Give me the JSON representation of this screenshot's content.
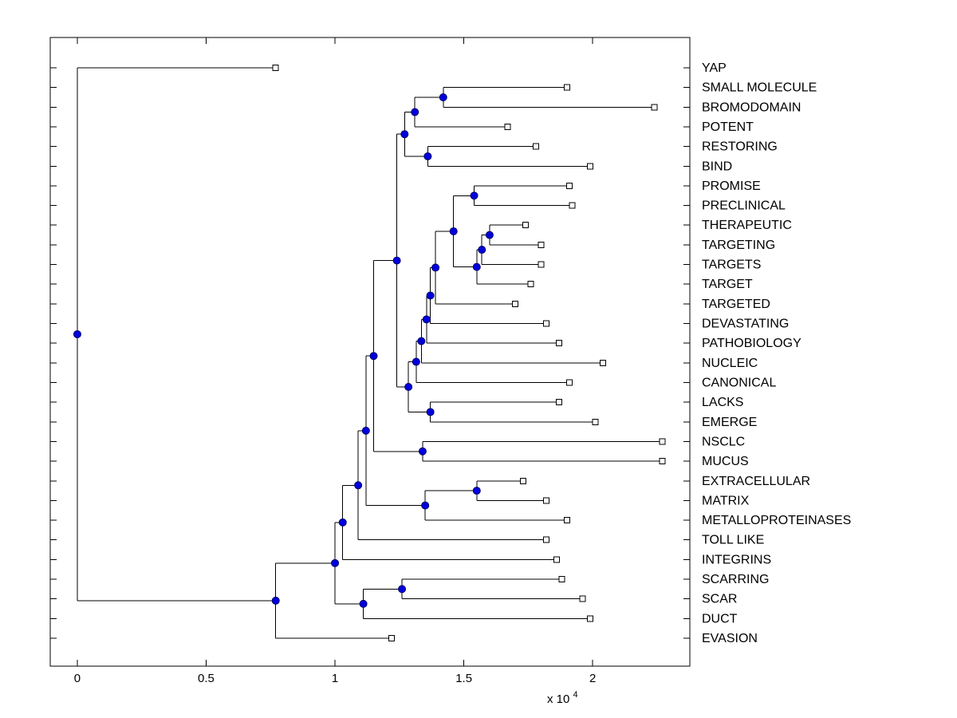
{
  "figure": {
    "background": "#ffffff"
  },
  "chart_data": {
    "type": "dendrogram",
    "orientation": "left-to-right",
    "title": "",
    "x_axis": {
      "ticks": [
        0,
        0.5,
        1,
        1.5,
        2
      ],
      "tick_labels": [
        "0",
        "0.5",
        "1",
        "1.5",
        "2"
      ],
      "xlim": [
        -0.105,
        2.377
      ],
      "multiplier_prefix": "x 10",
      "multiplier_exponent": "4"
    },
    "leaves": [
      {
        "label": "YAP",
        "height": 0.77
      },
      {
        "label": "SMALL MOLECULE",
        "height": 1.9
      },
      {
        "label": "BROMODOMAIN",
        "height": 2.24
      },
      {
        "label": "POTENT",
        "height": 1.67
      },
      {
        "label": "RESTORING",
        "height": 1.78
      },
      {
        "label": "BIND",
        "height": 1.99
      },
      {
        "label": "PROMISE",
        "height": 1.91
      },
      {
        "label": "PRECLINICAL",
        "height": 1.92
      },
      {
        "label": "THERAPEUTIC",
        "height": 1.74
      },
      {
        "label": "TARGETING",
        "height": 1.8
      },
      {
        "label": "TARGETS",
        "height": 1.8
      },
      {
        "label": "TARGET",
        "height": 1.76
      },
      {
        "label": "TARGETED",
        "height": 1.7
      },
      {
        "label": "DEVASTATING",
        "height": 1.82
      },
      {
        "label": "PATHOBIOLOGY",
        "height": 1.87
      },
      {
        "label": "NUCLEIC",
        "height": 2.04
      },
      {
        "label": "CANONICAL",
        "height": 1.91
      },
      {
        "label": "LACKS",
        "height": 1.87
      },
      {
        "label": "EMERGE",
        "height": 2.01
      },
      {
        "label": "NSCLC",
        "height": 2.27
      },
      {
        "label": "MUCUS",
        "height": 2.27
      },
      {
        "label": "EXTRACELLULAR",
        "height": 1.73
      },
      {
        "label": "MATRIX",
        "height": 1.82
      },
      {
        "label": "METALLOPROTEINASES",
        "height": 1.9
      },
      {
        "label": "TOLL LIKE",
        "height": 1.82
      },
      {
        "label": "INTEGRINS",
        "height": 1.86
      },
      {
        "label": "SCARRING",
        "height": 1.88
      },
      {
        "label": "SCAR",
        "height": 1.96
      },
      {
        "label": "DUCT",
        "height": 1.99
      },
      {
        "label": "EVASION",
        "height": 1.22
      }
    ],
    "internal_nodes": [
      {
        "id": "n1",
        "children": [
          "leaf1",
          "leaf2"
        ],
        "height": 1.42
      },
      {
        "id": "n2",
        "children": [
          "n1",
          "leaf3"
        ],
        "height": 1.31
      },
      {
        "id": "n3",
        "children": [
          "leaf4",
          "leaf5"
        ],
        "height": 1.36
      },
      {
        "id": "n4",
        "children": [
          "n2",
          "n3"
        ],
        "height": 1.27
      },
      {
        "id": "n5",
        "children": [
          "leaf6",
          "leaf7"
        ],
        "height": 1.54
      },
      {
        "id": "n6",
        "children": [
          "leaf8",
          "leaf9"
        ],
        "height": 1.6
      },
      {
        "id": "n7",
        "children": [
          "n6",
          "leaf10"
        ],
        "height": 1.57
      },
      {
        "id": "n8",
        "children": [
          "n7",
          "leaf11"
        ],
        "height": 1.55
      },
      {
        "id": "n9",
        "children": [
          "n5",
          "n8"
        ],
        "height": 1.46
      },
      {
        "id": "n10",
        "children": [
          "n9",
          "leaf12"
        ],
        "height": 1.39
      },
      {
        "id": "n11",
        "children": [
          "n10",
          "leaf13"
        ],
        "height": 1.37
      },
      {
        "id": "n12",
        "children": [
          "n11",
          "leaf14"
        ],
        "height": 1.355
      },
      {
        "id": "n13",
        "children": [
          "n12",
          "leaf15"
        ],
        "height": 1.335
      },
      {
        "id": "n14",
        "children": [
          "n13",
          "leaf16"
        ],
        "height": 1.315
      },
      {
        "id": "n15",
        "children": [
          "leaf17",
          "leaf18"
        ],
        "height": 1.37
      },
      {
        "id": "n16",
        "children": [
          "n14",
          "n15"
        ],
        "height": 1.285
      },
      {
        "id": "n17",
        "children": [
          "n4",
          "n16"
        ],
        "height": 1.24
      },
      {
        "id": "n18",
        "children": [
          "leaf19",
          "leaf20"
        ],
        "height": 1.34
      },
      {
        "id": "n19",
        "children": [
          "n17",
          "n18"
        ],
        "height": 1.15
      },
      {
        "id": "n20",
        "children": [
          "leaf21",
          "leaf22"
        ],
        "height": 1.55
      },
      {
        "id": "n21",
        "children": [
          "n20",
          "leaf23"
        ],
        "height": 1.35
      },
      {
        "id": "n22",
        "children": [
          "n19",
          "n21"
        ],
        "height": 1.12
      },
      {
        "id": "n23",
        "children": [
          "n22",
          "leaf24"
        ],
        "height": 1.09
      },
      {
        "id": "n24",
        "children": [
          "n23",
          "leaf25"
        ],
        "height": 1.03
      },
      {
        "id": "n25",
        "children": [
          "leaf26",
          "leaf27"
        ],
        "height": 1.26
      },
      {
        "id": "n26",
        "children": [
          "n25",
          "leaf28"
        ],
        "height": 1.11
      },
      {
        "id": "n27",
        "children": [
          "n24",
          "n26"
        ],
        "height": 1.0
      },
      {
        "id": "n28",
        "children": [
          "n27",
          "leaf29"
        ],
        "height": 0.77
      },
      {
        "id": "root",
        "children": [
          "leaf0",
          "n28"
        ],
        "height": 0.0
      }
    ],
    "root": "root",
    "styles": {
      "line_color": "#000000",
      "axis_color": "#000000",
      "internal_node_fill": "#0000dd",
      "internal_node_stroke": "#000066",
      "leaf_marker_fill": "#ffffff",
      "leaf_marker_stroke": "#000000",
      "label_color": "#000000"
    }
  }
}
